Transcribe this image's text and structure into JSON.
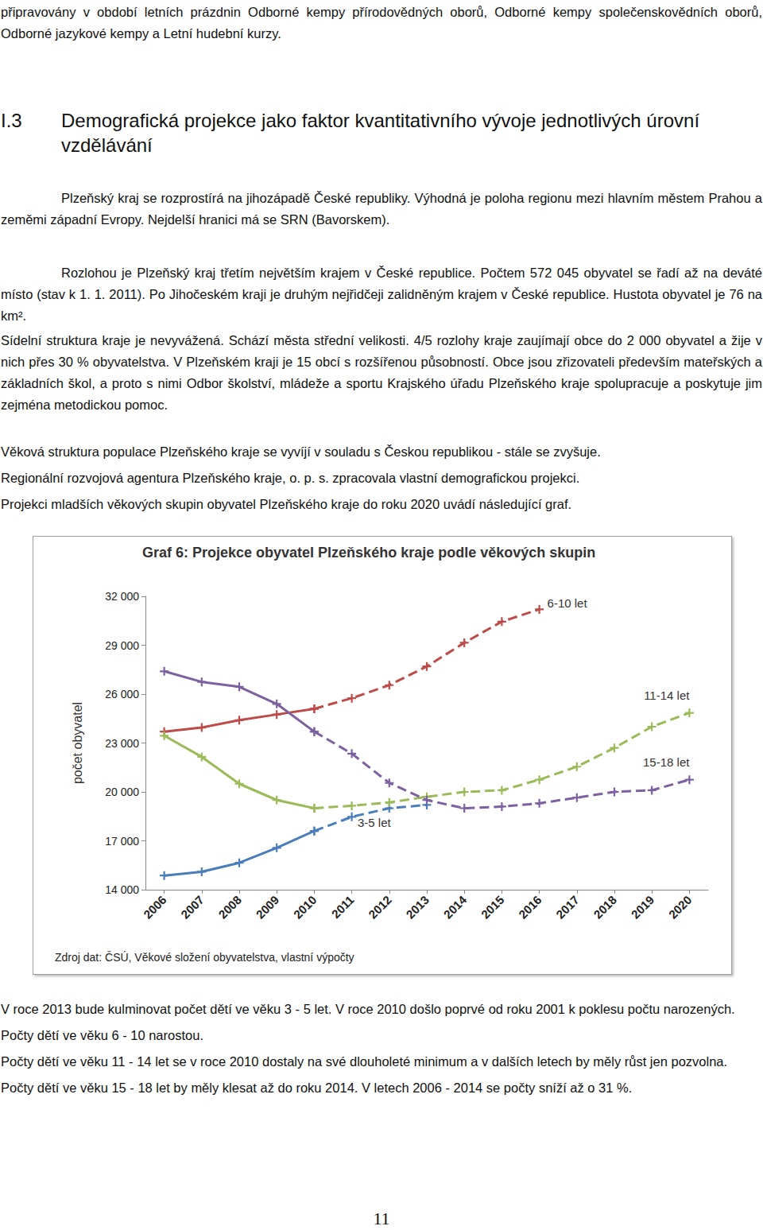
{
  "page": {
    "intro": "připravovány v období letních prázdnin Odborné kempy přírodovědných oborů, Odborné kempy společenskovědních oborů, Odborné jazykové kempy a Letní hudební kurzy.",
    "section": {
      "number": "I.3",
      "title": "Demografická projekce jako faktor kvantitativního vývoje jednotlivých úrovní vzdělávání"
    },
    "paragraphs_before": [
      "Plzeňský kraj se rozprostírá na jihozápadě České republiky. Výhodná je poloha regionu mezi hlavním městem Prahou a zeměmi západní Evropy. Nejdelší hranici má se SRN (Bavorskem).",
      "Rozlohou je Plzeňský kraj třetím největším krajem v České republice. Počtem 572 045 obyvatel se řadí až na deváté místo (stav k 1. 1. 2011). Po Jihočeském kraji je druhým nejřidčeji zalidněným krajem v České republice. Hustota obyvatel je 76 na km².",
      "Sídelní struktura kraje je nevyvážená. Schází města střední velikosti. 4/5 rozlohy kraje zaujímají obce do 2 000 obyvatel a žije v nich přes 30 % obyvatelstva. V Plzeňském kraji je 15 obcí s rozšířenou působností. Obce jsou zřizovateli především mateřských a základních škol, a proto s nimi Odbor školství, mládeže a sportu Krajského úřadu Plzeňského kraje spolupracuje a poskytuje jim zejména metodickou pomoc.",
      "Věková struktura populace Plzeňského kraje se vyvíjí v souladu s Českou republikou - stále se zvyšuje.",
      "Regionální rozvojová agentura Plzeňského kraje, o. p. s. zpracovala vlastní demografickou projekci.",
      "Projekci mladších věkových skupin obyvatel Plzeňského kraje do roku 2020 uvádí následující graf."
    ],
    "paragraphs_after": [
      "V roce 2013 bude kulminovat počet dětí ve věku 3 - 5 let. V roce 2010 došlo poprvé od roku 2001 k poklesu počtu narozených.",
      "Počty dětí ve věku 6 - 10 narostou.",
      "Počty dětí ve věku 11 - 14 let se v roce 2010 dostaly na své dlouholeté minimum a v dalších letech by měly růst jen pozvolna.",
      "Počty dětí ve věku 15 - 18 let by měly klesat až do roku 2014. V letech 2006 - 2014 se počty sníží až o 31 %."
    ],
    "page_number": "11"
  },
  "chart_data": {
    "type": "line",
    "title": "Graf 6: Projekce obyvatel Plzeňského kraje podle věkových skupin",
    "y_label": "počet obyvatel",
    "source": "Zdroj dat: ČSÚ, Věkové složení obyvatelstva, vlastní výpočty",
    "categories": [
      "2006",
      "2007",
      "2008",
      "2009",
      "2010",
      "2011",
      "2012",
      "2013",
      "2014",
      "2015",
      "2016",
      "2017",
      "2018",
      "2019",
      "2020"
    ],
    "ylim": [
      14000,
      32000
    ],
    "yticks": [
      {
        "value": 14000,
        "label": "14 000"
      },
      {
        "value": 17000,
        "label": "17 000"
      },
      {
        "value": 20000,
        "label": "20 000"
      },
      {
        "value": 23000,
        "label": "23 000"
      },
      {
        "value": 26000,
        "label": "26 000"
      },
      {
        "value": 29000,
        "label": "29 000"
      },
      {
        "value": 32000,
        "label": "32 000"
      }
    ],
    "grid": false,
    "marker": "plus",
    "series": [
      {
        "name": "3-5 let",
        "color": "#4a7ebb",
        "line_style": "solid",
        "values": [
          14870,
          15100,
          15650,
          16570,
          17600,
          null,
          null,
          null,
          null,
          null,
          null,
          null,
          null,
          null,
          null
        ]
      },
      {
        "name": "3-5 let",
        "color": "#4a7ebb",
        "line_style": "dashed",
        "values": [
          null,
          null,
          null,
          null,
          17600,
          18470,
          19000,
          19200,
          null,
          null,
          null,
          null,
          null,
          null,
          null
        ]
      },
      {
        "name": "6-10 let",
        "color": "#be4b48",
        "line_style": "solid",
        "values": [
          23700,
          23950,
          24400,
          24750,
          25100,
          null,
          null,
          null,
          null,
          null,
          null,
          null,
          null,
          null,
          null
        ]
      },
      {
        "name": "6-10 let",
        "color": "#be4b48",
        "line_style": "dashed",
        "values": [
          null,
          null,
          null,
          null,
          25100,
          25750,
          26550,
          27700,
          29150,
          30450,
          31200,
          null,
          null,
          null,
          null
        ]
      },
      {
        "name": "11-14 let",
        "color": "#9bbb59",
        "line_style": "solid",
        "values": [
          23450,
          22150,
          20500,
          19500,
          19000,
          null,
          null,
          null,
          null,
          null,
          null,
          null,
          null,
          null,
          null
        ]
      },
      {
        "name": "11-14 let",
        "color": "#9bbb59",
        "line_style": "dashed",
        "values": [
          null,
          null,
          null,
          null,
          19000,
          19150,
          19350,
          19700,
          20000,
          20100,
          20750,
          21550,
          22700,
          24000,
          24850
        ]
      },
      {
        "name": "15-18 let",
        "color": "#7d60a0",
        "line_style": "solid",
        "values": [
          27400,
          26750,
          26450,
          25400,
          23700,
          null,
          null,
          null,
          null,
          null,
          null,
          null,
          null,
          null,
          null
        ]
      },
      {
        "name": "15-18 let",
        "color": "#7d60a0",
        "line_style": "dashed",
        "values": [
          null,
          null,
          null,
          null,
          23700,
          22350,
          20550,
          19500,
          19000,
          19100,
          19300,
          19650,
          20000,
          20100,
          20750
        ]
      }
    ]
  }
}
